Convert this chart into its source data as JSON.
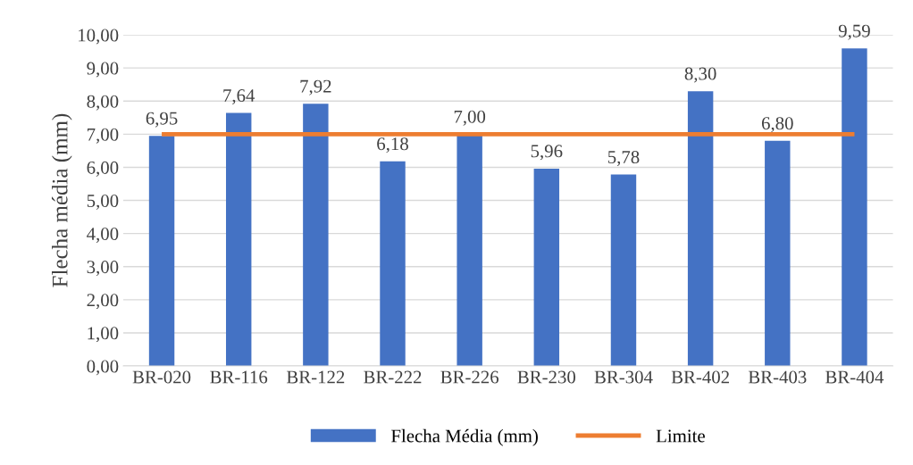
{
  "chart_data": {
    "type": "bar",
    "ylabel": "Flecha média (mm)",
    "categories": [
      "BR-020",
      "BR-116",
      "BR-122",
      "BR-222",
      "BR-226",
      "BR-230",
      "BR-304",
      "BR-402",
      "BR-403",
      "BR-404"
    ],
    "series": [
      {
        "name": "Flecha Média (mm)",
        "color": "#4472c4",
        "values": [
          6.95,
          7.64,
          7.92,
          6.18,
          7.0,
          5.96,
          5.78,
          8.3,
          6.8,
          9.59
        ],
        "value_labels": [
          "6,95",
          "7,64",
          "7,92",
          "6,18",
          "7,00",
          "5,96",
          "5,78",
          "8,30",
          "6,80",
          "9,59"
        ]
      },
      {
        "name": "Limite",
        "type": "line",
        "color": "#ed7d31",
        "values": [
          7,
          7,
          7,
          7,
          7,
          7,
          7,
          7,
          7,
          7
        ]
      }
    ],
    "ylim": [
      0,
      10
    ],
    "yticks": [
      {
        "value": 0,
        "label": "0,00"
      },
      {
        "value": 1,
        "label": "1,00"
      },
      {
        "value": 2,
        "label": "2,00"
      },
      {
        "value": 3,
        "label": "3,00"
      },
      {
        "value": 4,
        "label": "4,00"
      },
      {
        "value": 5,
        "label": "5,00"
      },
      {
        "value": 6,
        "label": "6,00"
      },
      {
        "value": 7,
        "label": "7,00"
      },
      {
        "value": 8,
        "label": "8,00"
      },
      {
        "value": 9,
        "label": "9,00"
      },
      {
        "value": 10,
        "label": "10,00"
      }
    ],
    "grid": "y",
    "legend": "bottom"
  }
}
